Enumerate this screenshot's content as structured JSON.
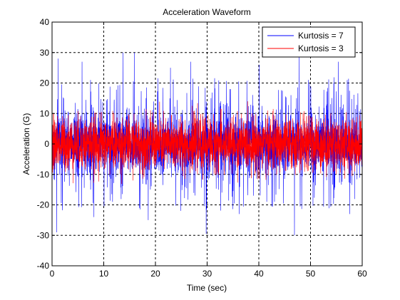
{
  "figure": {
    "background": "#ffffff"
  },
  "chart_data": {
    "type": "line",
    "title": "Acceleration Waveform",
    "xlabel": "Time (sec)",
    "ylabel": "Acceleration (G)",
    "xlim": [
      0,
      60
    ],
    "ylim": [
      -40,
      40
    ],
    "xticks": [
      0,
      10,
      20,
      30,
      40,
      50,
      60
    ],
    "yticks": [
      -40,
      -30,
      -20,
      -10,
      0,
      10,
      20,
      30,
      40
    ],
    "xtick_labels": [
      "0",
      "10",
      "20",
      "30",
      "40",
      "50",
      "60"
    ],
    "ytick_labels": [
      "-40",
      "-30",
      "-20",
      "-10",
      "0",
      "10",
      "20",
      "30",
      "40"
    ],
    "grid": true,
    "legend_position": "top-right",
    "series": [
      {
        "name": "Kurtosis = 7",
        "color": "#0000ff",
        "kurtosis": 7,
        "typical_range": [
          -10,
          10
        ],
        "peak_range": [
          -30,
          30
        ],
        "notable_peaks": [
          {
            "x": 0.9,
            "y": -29
          },
          {
            "x": 1.2,
            "y": 28
          },
          {
            "x": 5.8,
            "y": 27
          },
          {
            "x": 8.1,
            "y": -24
          },
          {
            "x": 13.7,
            "y": 30
          },
          {
            "x": 15.9,
            "y": 30
          },
          {
            "x": 18.6,
            "y": -25
          },
          {
            "x": 22.9,
            "y": 25
          },
          {
            "x": 26.8,
            "y": 27
          },
          {
            "x": 29.8,
            "y": -29.5
          },
          {
            "x": 36.2,
            "y": -23
          },
          {
            "x": 40.1,
            "y": 26
          },
          {
            "x": 46.9,
            "y": -30
          },
          {
            "x": 47.8,
            "y": 30
          },
          {
            "x": 55.4,
            "y": 27
          },
          {
            "x": 57.6,
            "y": -23
          }
        ]
      },
      {
        "name": "Kurtosis = 3",
        "color": "#ff0000",
        "kurtosis": 3,
        "typical_range": [
          -10,
          10
        ],
        "peak_range": [
          -14,
          14
        ]
      }
    ]
  }
}
